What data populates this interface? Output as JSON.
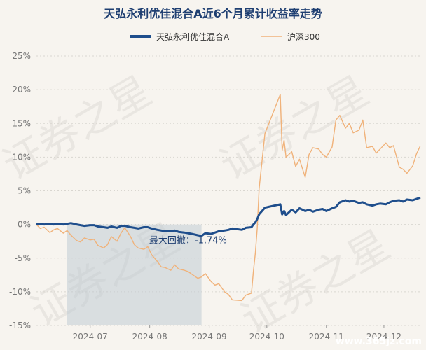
{
  "chart_data": {
    "type": "line",
    "title": "天弘永利优佳混合A近6个月累计收益率走势",
    "series": [
      {
        "name": "天弘永利优佳混合A",
        "color": "#1f4e8c",
        "values": [
          [
            "2024-06-03",
            0.0
          ],
          [
            "2024-06-05",
            0.1
          ],
          [
            "2024-06-07",
            0.0
          ],
          [
            "2024-06-10",
            0.1
          ],
          [
            "2024-06-12",
            0.0
          ],
          [
            "2024-06-14",
            0.1
          ],
          [
            "2024-06-17",
            0.0
          ],
          [
            "2024-06-19",
            0.1
          ],
          [
            "2024-06-21",
            0.2
          ],
          [
            "2024-06-24",
            0.0
          ],
          [
            "2024-06-26",
            -0.1
          ],
          [
            "2024-06-28",
            -0.2
          ],
          [
            "2024-07-01",
            -0.1
          ],
          [
            "2024-07-03",
            -0.1
          ],
          [
            "2024-07-05",
            -0.3
          ],
          [
            "2024-07-08",
            -0.4
          ],
          [
            "2024-07-10",
            -0.5
          ],
          [
            "2024-07-12",
            -0.3
          ],
          [
            "2024-07-15",
            -0.5
          ],
          [
            "2024-07-17",
            -0.2
          ],
          [
            "2024-07-19",
            -0.2
          ],
          [
            "2024-07-22",
            -0.4
          ],
          [
            "2024-07-24",
            -0.5
          ],
          [
            "2024-07-26",
            -0.6
          ],
          [
            "2024-07-29",
            -0.4
          ],
          [
            "2024-07-31",
            -0.4
          ],
          [
            "2024-08-02",
            -0.6
          ],
          [
            "2024-08-05",
            -0.8
          ],
          [
            "2024-08-07",
            -0.9
          ],
          [
            "2024-08-09",
            -1.0
          ],
          [
            "2024-08-12",
            -1.0
          ],
          [
            "2024-08-14",
            -0.9
          ],
          [
            "2024-08-16",
            -1.1
          ],
          [
            "2024-08-19",
            -1.2
          ],
          [
            "2024-08-21",
            -1.3
          ],
          [
            "2024-08-23",
            -1.4
          ],
          [
            "2024-08-26",
            -1.6
          ],
          [
            "2024-08-28",
            -1.7
          ],
          [
            "2024-08-30",
            -1.3
          ],
          [
            "2024-09-02",
            -1.4
          ],
          [
            "2024-09-04",
            -1.2
          ],
          [
            "2024-09-06",
            -1.0
          ],
          [
            "2024-09-09",
            -0.9
          ],
          [
            "2024-09-11",
            -0.8
          ],
          [
            "2024-09-13",
            -0.6
          ],
          [
            "2024-09-18",
            -0.8
          ],
          [
            "2024-09-20",
            -0.5
          ],
          [
            "2024-09-23",
            -0.4
          ],
          [
            "2024-09-24",
            0.0
          ],
          [
            "2024-09-25",
            0.3
          ],
          [
            "2024-09-26",
            0.8
          ],
          [
            "2024-09-27",
            1.5
          ],
          [
            "2024-09-30",
            2.5
          ],
          [
            "2024-10-08",
            3.0
          ],
          [
            "2024-10-09",
            1.5
          ],
          [
            "2024-10-10",
            2.0
          ],
          [
            "2024-10-11",
            1.4
          ],
          [
            "2024-10-14",
            2.2
          ],
          [
            "2024-10-16",
            1.8
          ],
          [
            "2024-10-18",
            2.4
          ],
          [
            "2024-10-21",
            2.0
          ],
          [
            "2024-10-23",
            2.2
          ],
          [
            "2024-10-25",
            1.9
          ],
          [
            "2024-10-28",
            2.2
          ],
          [
            "2024-10-30",
            2.3
          ],
          [
            "2024-11-01",
            2.0
          ],
          [
            "2024-11-04",
            2.4
          ],
          [
            "2024-11-06",
            2.6
          ],
          [
            "2024-11-08",
            3.3
          ],
          [
            "2024-11-11",
            3.6
          ],
          [
            "2024-11-13",
            3.4
          ],
          [
            "2024-11-15",
            3.5
          ],
          [
            "2024-11-18",
            3.2
          ],
          [
            "2024-11-20",
            3.3
          ],
          [
            "2024-11-22",
            3.0
          ],
          [
            "2024-11-25",
            2.8
          ],
          [
            "2024-11-27",
            3.0
          ],
          [
            "2024-11-29",
            3.1
          ],
          [
            "2024-12-02",
            3.0
          ],
          [
            "2024-12-04",
            3.3
          ],
          [
            "2024-12-06",
            3.5
          ],
          [
            "2024-12-09",
            3.6
          ],
          [
            "2024-12-11",
            3.4
          ],
          [
            "2024-12-13",
            3.7
          ],
          [
            "2024-12-16",
            3.6
          ],
          [
            "2024-12-18",
            3.8
          ],
          [
            "2024-12-20",
            4.0
          ]
        ]
      },
      {
        "name": "沪深300",
        "color": "#f0b27a",
        "values": [
          [
            "2024-06-03",
            0.0
          ],
          [
            "2024-06-05",
            -0.6
          ],
          [
            "2024-06-07",
            -0.4
          ],
          [
            "2024-06-10",
            -1.2
          ],
          [
            "2024-06-12",
            -0.8
          ],
          [
            "2024-06-14",
            -0.6
          ],
          [
            "2024-06-17",
            -1.3
          ],
          [
            "2024-06-19",
            -0.9
          ],
          [
            "2024-06-21",
            -1.6
          ],
          [
            "2024-06-24",
            -2.4
          ],
          [
            "2024-06-26",
            -2.6
          ],
          [
            "2024-06-28",
            -2.0
          ],
          [
            "2024-07-01",
            -2.3
          ],
          [
            "2024-07-03",
            -2.2
          ],
          [
            "2024-07-05",
            -3.1
          ],
          [
            "2024-07-08",
            -3.5
          ],
          [
            "2024-07-10",
            -3.0
          ],
          [
            "2024-07-12",
            -1.8
          ],
          [
            "2024-07-15",
            -2.5
          ],
          [
            "2024-07-17",
            -1.3
          ],
          [
            "2024-07-19",
            -0.5
          ],
          [
            "2024-07-22",
            -1.8
          ],
          [
            "2024-07-24",
            -3.0
          ],
          [
            "2024-07-26",
            -3.5
          ],
          [
            "2024-07-29",
            -3.7
          ],
          [
            "2024-07-31",
            -3.3
          ],
          [
            "2024-08-02",
            -4.5
          ],
          [
            "2024-08-05",
            -5.5
          ],
          [
            "2024-08-07",
            -6.3
          ],
          [
            "2024-08-09",
            -6.4
          ],
          [
            "2024-08-12",
            -6.8
          ],
          [
            "2024-08-14",
            -6.0
          ],
          [
            "2024-08-16",
            -6.6
          ],
          [
            "2024-08-19",
            -6.8
          ],
          [
            "2024-08-21",
            -7.0
          ],
          [
            "2024-08-23",
            -7.4
          ],
          [
            "2024-08-26",
            -8.0
          ],
          [
            "2024-08-28",
            -7.8
          ],
          [
            "2024-08-30",
            -7.3
          ],
          [
            "2024-09-02",
            -8.5
          ],
          [
            "2024-09-04",
            -9.0
          ],
          [
            "2024-09-06",
            -8.8
          ],
          [
            "2024-09-09",
            -10.0
          ],
          [
            "2024-09-11",
            -10.4
          ],
          [
            "2024-09-13",
            -11.2
          ],
          [
            "2024-09-18",
            -11.3
          ],
          [
            "2024-09-20",
            -10.5
          ],
          [
            "2024-09-23",
            -10.2
          ],
          [
            "2024-09-24",
            -7.0
          ],
          [
            "2024-09-25",
            -4.3
          ],
          [
            "2024-09-26",
            -0.6
          ],
          [
            "2024-09-27",
            5.3
          ],
          [
            "2024-09-30",
            13.5
          ],
          [
            "2024-10-08",
            19.3
          ],
          [
            "2024-10-09",
            11.0
          ],
          [
            "2024-10-10",
            12.5
          ],
          [
            "2024-10-11",
            10.0
          ],
          [
            "2024-10-14",
            10.8
          ],
          [
            "2024-10-16",
            8.6
          ],
          [
            "2024-10-18",
            9.7
          ],
          [
            "2024-10-21",
            7.0
          ],
          [
            "2024-10-23",
            10.4
          ],
          [
            "2024-10-25",
            11.4
          ],
          [
            "2024-10-28",
            11.2
          ],
          [
            "2024-10-30",
            10.4
          ],
          [
            "2024-11-01",
            10.0
          ],
          [
            "2024-11-04",
            11.5
          ],
          [
            "2024-11-06",
            15.5
          ],
          [
            "2024-11-08",
            16.2
          ],
          [
            "2024-11-11",
            14.3
          ],
          [
            "2024-11-13",
            15.0
          ],
          [
            "2024-11-15",
            13.6
          ],
          [
            "2024-11-18",
            14.0
          ],
          [
            "2024-11-20",
            15.5
          ],
          [
            "2024-11-22",
            11.4
          ],
          [
            "2024-11-25",
            11.6
          ],
          [
            "2024-11-27",
            10.6
          ],
          [
            "2024-11-29",
            11.2
          ],
          [
            "2024-12-02",
            12.1
          ],
          [
            "2024-12-04",
            11.4
          ],
          [
            "2024-12-06",
            11.7
          ],
          [
            "2024-12-09",
            8.5
          ],
          [
            "2024-12-11",
            8.2
          ],
          [
            "2024-12-13",
            7.6
          ],
          [
            "2024-12-16",
            8.7
          ],
          [
            "2024-12-18",
            10.5
          ],
          [
            "2024-12-20",
            11.7
          ]
        ]
      }
    ],
    "x_ticks": [
      "2024-07",
      "2024-08",
      "2024-09",
      "2024-10",
      "2024-11",
      "2024-12"
    ],
    "y_ticks": [
      25,
      20,
      15,
      10,
      5,
      0,
      -5,
      -10,
      -15
    ],
    "y_tick_labels": [
      "25%",
      "20%",
      "15%",
      "10%",
      "5%",
      "0%",
      "-5%",
      "-10%",
      "-15%"
    ],
    "ylim": [
      -15,
      25
    ],
    "xlim": [
      "2024-06-03",
      "2024-12-20"
    ],
    "grid": true,
    "legend_position": "top-center",
    "max_drawdown": {
      "label": "最大回撤：-1.74%",
      "start": "2024-06-19",
      "end": "2024-08-28"
    },
    "watermark": "证券之星",
    "site_watermark": "www.365jz.com"
  }
}
